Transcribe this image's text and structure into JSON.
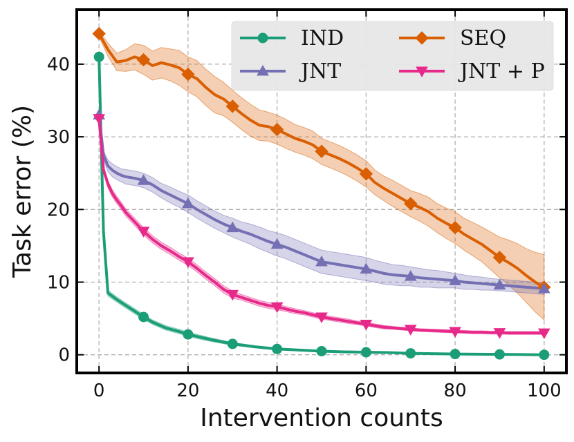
{
  "chart_data": {
    "type": "line",
    "xlabel": "Intervention counts",
    "ylabel": "Task error (%)",
    "xlim": [
      -5,
      105
    ],
    "ylim": [
      -2.5,
      47.5
    ],
    "xticks": [
      0,
      20,
      40,
      60,
      80,
      100
    ],
    "yticks": [
      0,
      10,
      20,
      30,
      40
    ],
    "grid": true,
    "legend": {
      "position": "top-right",
      "columns": 2
    },
    "series": [
      {
        "name": "IND",
        "color": "#1b9e77",
        "marker": "circle",
        "x": [
          0,
          1,
          2,
          4,
          6,
          8,
          10,
          12,
          15,
          18,
          20,
          25,
          30,
          35,
          40,
          45,
          50,
          55,
          60,
          65,
          70,
          75,
          80,
          85,
          90,
          95,
          100
        ],
        "y": [
          41.0,
          17.0,
          8.5,
          7.6,
          6.8,
          6.0,
          5.2,
          4.5,
          3.7,
          3.2,
          2.8,
          2.1,
          1.5,
          1.1,
          0.8,
          0.65,
          0.5,
          0.4,
          0.35,
          0.3,
          0.2,
          0.15,
          0.1,
          0.08,
          0.05,
          0.03,
          0.0
        ],
        "band": [
          0.2,
          0.5,
          0.4,
          0.35,
          0.35,
          0.35,
          0.35,
          0.3,
          0.3,
          0.3,
          0.3,
          0.25,
          0.2,
          0.15,
          0.15,
          0.12,
          0.1,
          0.1,
          0.08,
          0.08,
          0.06,
          0.06,
          0.05,
          0.05,
          0.05,
          0.05,
          0.05
        ],
        "markers_x": [
          0,
          10,
          20,
          30,
          40,
          50,
          60,
          70,
          80,
          90,
          100
        ]
      },
      {
        "name": "SEQ",
        "color": "#d95f02",
        "marker": "diamond",
        "x": [
          0,
          2,
          4,
          6,
          8,
          10,
          12,
          14,
          16,
          18,
          20,
          22,
          24,
          26,
          28,
          30,
          32,
          34,
          36,
          38,
          40,
          42,
          44,
          46,
          48,
          50,
          52,
          54,
          56,
          58,
          60,
          62,
          64,
          66,
          68,
          70,
          72,
          74,
          76,
          78,
          80,
          82,
          84,
          86,
          88,
          90,
          92,
          94,
          96,
          98,
          100
        ],
        "y": [
          44.2,
          42.0,
          40.3,
          40.5,
          41.0,
          40.6,
          39.8,
          40.2,
          39.9,
          39.5,
          38.6,
          38.0,
          36.8,
          35.8,
          35.2,
          34.2,
          33.2,
          32.3,
          31.6,
          31.4,
          31.0,
          30.4,
          29.8,
          29.4,
          28.9,
          28.0,
          27.5,
          27.0,
          26.4,
          25.7,
          24.9,
          23.7,
          22.9,
          22.2,
          21.5,
          20.8,
          20.3,
          19.7,
          18.8,
          18.1,
          17.5,
          16.6,
          15.9,
          15.2,
          14.3,
          13.4,
          12.7,
          11.9,
          10.9,
          10.0,
          9.3
        ],
        "band": [
          0.4,
          0.9,
          1.2,
          1.5,
          1.8,
          2.0,
          2.0,
          2.1,
          2.2,
          2.4,
          2.4,
          2.5,
          2.5,
          2.5,
          2.3,
          2.2,
          2.2,
          2.2,
          2.1,
          2.0,
          2.0,
          2.0,
          1.9,
          1.9,
          1.9,
          1.8,
          1.8,
          1.8,
          1.8,
          1.8,
          1.8,
          1.7,
          1.7,
          1.8,
          1.8,
          1.8,
          1.9,
          2.0,
          2.0,
          2.1,
          2.2,
          2.2,
          2.3,
          2.4,
          2.6,
          2.8,
          3.1,
          3.4,
          3.7,
          4.1,
          4.5
        ],
        "markers_x": [
          0,
          10,
          20,
          30,
          40,
          50,
          60,
          70,
          80,
          90,
          100
        ]
      },
      {
        "name": "JNT",
        "color": "#7570b3",
        "marker": "triangle-up",
        "x": [
          0,
          1,
          2,
          3,
          4,
          5,
          6,
          8,
          10,
          12,
          14,
          16,
          18,
          20,
          22,
          24,
          26,
          28,
          30,
          32,
          34,
          36,
          38,
          40,
          42,
          44,
          46,
          48,
          50,
          52,
          54,
          56,
          58,
          60,
          62,
          64,
          66,
          68,
          70,
          72,
          74,
          76,
          78,
          80,
          82,
          84,
          86,
          88,
          90,
          92,
          94,
          96,
          98,
          100
        ],
        "y": [
          33.0,
          27.5,
          26.0,
          25.4,
          25.0,
          24.7,
          24.5,
          24.3,
          24.0,
          23.4,
          22.6,
          22.0,
          21.4,
          20.8,
          20.0,
          19.3,
          18.6,
          18.0,
          17.5,
          17.0,
          16.6,
          16.1,
          15.6,
          15.2,
          14.8,
          14.3,
          13.8,
          13.3,
          12.8,
          12.6,
          12.4,
          12.2,
          12.0,
          11.8,
          11.5,
          11.2,
          11.0,
          10.9,
          10.8,
          10.6,
          10.5,
          10.4,
          10.3,
          10.2,
          10.0,
          9.9,
          9.8,
          9.7,
          9.6,
          9.5,
          9.4,
          9.3,
          9.2,
          9.1
        ],
        "band": [
          0.3,
          0.6,
          0.8,
          0.9,
          0.9,
          0.9,
          1.0,
          1.0,
          1.0,
          1.0,
          1.0,
          1.1,
          1.1,
          1.2,
          1.2,
          1.2,
          1.2,
          1.2,
          1.3,
          1.3,
          1.4,
          1.5,
          1.5,
          1.6,
          1.6,
          1.6,
          1.6,
          1.6,
          1.6,
          1.6,
          1.6,
          1.6,
          1.6,
          1.6,
          1.5,
          1.5,
          1.4,
          1.4,
          1.3,
          1.3,
          1.2,
          1.2,
          1.1,
          1.0,
          1.0,
          0.9,
          0.9,
          0.8,
          0.8,
          0.8,
          0.8,
          0.8,
          0.8,
          0.8
        ],
        "markers_x": [
          0,
          10,
          20,
          30,
          40,
          50,
          60,
          70,
          80,
          90,
          100
        ]
      },
      {
        "name": "JNT + P",
        "color": "#e7298a",
        "marker": "triangle-down",
        "x": [
          0,
          1,
          2,
          3,
          4,
          5,
          6,
          8,
          10,
          12,
          14,
          16,
          18,
          20,
          22,
          24,
          26,
          28,
          30,
          32,
          34,
          36,
          38,
          40,
          42,
          44,
          46,
          48,
          50,
          52,
          54,
          56,
          58,
          60,
          62,
          64,
          66,
          68,
          70,
          72,
          74,
          76,
          78,
          80,
          82,
          84,
          86,
          88,
          90,
          92,
          94,
          96,
          98,
          100
        ],
        "y": [
          32.5,
          25.5,
          23.5,
          22.2,
          21.3,
          20.5,
          19.6,
          18.3,
          17.0,
          15.9,
          15.0,
          14.3,
          13.5,
          12.8,
          11.9,
          10.9,
          10.0,
          9.0,
          8.3,
          7.9,
          7.5,
          7.1,
          6.8,
          6.6,
          6.3,
          6.0,
          5.8,
          5.5,
          5.2,
          5.0,
          4.8,
          4.6,
          4.4,
          4.2,
          4.0,
          3.8,
          3.7,
          3.6,
          3.5,
          3.4,
          3.35,
          3.3,
          3.25,
          3.2,
          3.15,
          3.1,
          3.1,
          3.05,
          3.05,
          3.0,
          3.0,
          3.0,
          3.0,
          3.0
        ],
        "band": [
          0.3,
          0.5,
          0.5,
          0.5,
          0.5,
          0.5,
          0.5,
          0.5,
          0.5,
          0.5,
          0.5,
          0.5,
          0.5,
          0.5,
          0.5,
          0.5,
          0.5,
          0.5,
          0.5,
          0.4,
          0.4,
          0.4,
          0.4,
          0.4,
          0.35,
          0.35,
          0.3,
          0.3,
          0.3,
          0.3,
          0.3,
          0.3,
          0.25,
          0.25,
          0.25,
          0.25,
          0.2,
          0.2,
          0.2,
          0.2,
          0.2,
          0.2,
          0.2,
          0.2,
          0.2,
          0.2,
          0.2,
          0.2,
          0.2,
          0.2,
          0.2,
          0.2,
          0.2,
          0.2
        ],
        "markers_x": [
          0,
          10,
          20,
          30,
          40,
          50,
          60,
          70,
          80,
          90,
          100
        ]
      }
    ]
  }
}
